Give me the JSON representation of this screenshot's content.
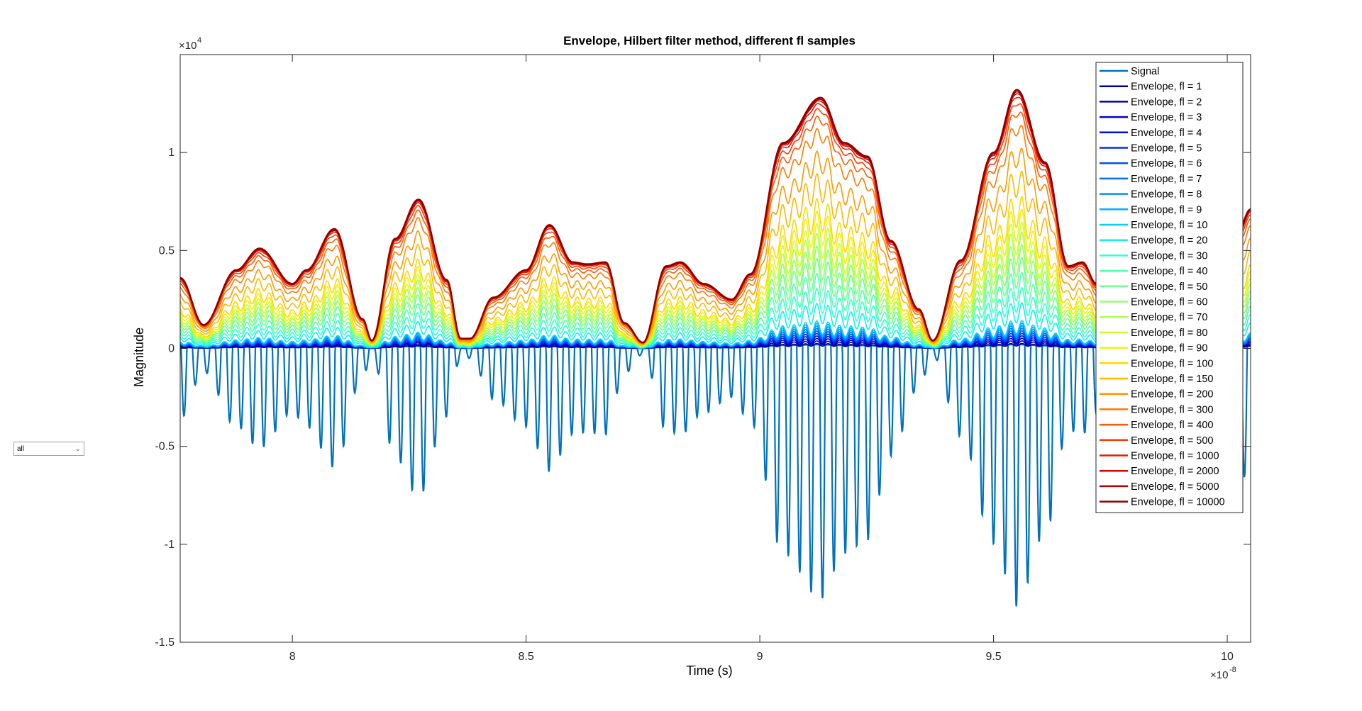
{
  "control": {
    "selected": "all",
    "chevron_icon": "chevron-down-icon"
  },
  "chart_data": {
    "type": "line",
    "title": "Envelope, Hilbert filter method, different fl samples",
    "xlabel": "Time (s)",
    "ylabel": "Magnitude",
    "x_exponent": "×10",
    "x_exponent_power": "-8",
    "y_exponent": "×10",
    "y_exponent_power": "4",
    "xlim": [
      7.76,
      10.05
    ],
    "ylim": [
      -1.5,
      1.5
    ],
    "xticks": [
      8,
      8.5,
      9,
      9.5,
      10
    ],
    "xtick_labels": [
      "8",
      "8.5",
      "9",
      "9.5",
      "10"
    ],
    "yticks": [
      1,
      0.5,
      0,
      -0.5,
      -1,
      -1.5
    ],
    "ytick_labels": [
      "1",
      "0.5",
      "0",
      "-0.5",
      "-1",
      "-1.5"
    ],
    "carrier_frequency_per_unit": 41,
    "envelope_peaks": {
      "x": [
        7.76,
        7.81,
        7.88,
        7.93,
        8.0,
        8.03,
        8.09,
        8.15,
        8.17,
        8.22,
        8.27,
        8.33,
        8.36,
        8.38,
        8.43,
        8.5,
        8.55,
        8.6,
        8.63,
        8.67,
        8.71,
        8.75,
        8.8,
        8.83,
        8.88,
        8.94,
        8.98,
        9.05,
        9.13,
        9.18,
        9.23,
        9.28,
        9.34,
        9.37,
        9.43,
        9.5,
        9.55,
        9.61,
        9.66,
        9.69,
        9.72,
        9.74,
        9.78,
        9.85,
        9.93,
        10.0,
        10.02,
        10.05
      ],
      "y": [
        0.36,
        0.12,
        0.4,
        0.51,
        0.33,
        0.4,
        0.61,
        0.15,
        0.04,
        0.56,
        0.76,
        0.35,
        0.05,
        0.05,
        0.26,
        0.4,
        0.63,
        0.44,
        0.43,
        0.44,
        0.13,
        0.03,
        0.42,
        0.44,
        0.33,
        0.25,
        0.38,
        1.05,
        1.28,
        1.05,
        0.98,
        0.55,
        0.2,
        0.04,
        0.45,
        1.0,
        1.32,
        0.95,
        0.42,
        0.44,
        0.33,
        0.1,
        0.12,
        0.12,
        0.12,
        0.05,
        0.58,
        0.71
      ]
    },
    "series": [
      {
        "name": "Signal",
        "color": "#0072BD",
        "frac": null
      },
      {
        "name": "Envelope, fl = 1",
        "color": "#00008F",
        "frac": 0.02
      },
      {
        "name": "Envelope, fl = 2",
        "color": "#0000A8",
        "frac": 0.03
      },
      {
        "name": "Envelope, fl = 3",
        "color": "#0000C8",
        "frac": 0.04
      },
      {
        "name": "Envelope, fl = 4",
        "color": "#0010E0",
        "frac": 0.05
      },
      {
        "name": "Envelope, fl = 5",
        "color": "#0030EE",
        "frac": 0.06
      },
      {
        "name": "Envelope, fl = 6",
        "color": "#0050F5",
        "frac": 0.07
      },
      {
        "name": "Envelope, fl = 7",
        "color": "#0070FA",
        "frac": 0.08
      },
      {
        "name": "Envelope, fl = 8",
        "color": "#0090FF",
        "frac": 0.09
      },
      {
        "name": "Envelope, fl = 9",
        "color": "#00B0FF",
        "frac": 0.1
      },
      {
        "name": "Envelope, fl = 10",
        "color": "#00D0FF",
        "frac": 0.11
      },
      {
        "name": "Envelope, fl = 20",
        "color": "#10F0F0",
        "frac": 0.18
      },
      {
        "name": "Envelope, fl = 30",
        "color": "#30FFD0",
        "frac": 0.24
      },
      {
        "name": "Envelope, fl = 40",
        "color": "#50FFB0",
        "frac": 0.3
      },
      {
        "name": "Envelope, fl = 50",
        "color": "#70FF90",
        "frac": 0.36
      },
      {
        "name": "Envelope, fl = 60",
        "color": "#90FF70",
        "frac": 0.41
      },
      {
        "name": "Envelope, fl = 70",
        "color": "#B0FF50",
        "frac": 0.46
      },
      {
        "name": "Envelope, fl = 80",
        "color": "#D0FF30",
        "frac": 0.5
      },
      {
        "name": "Envelope, fl = 90",
        "color": "#F0F010",
        "frac": 0.55
      },
      {
        "name": "Envelope, fl = 100",
        "color": "#FFD800",
        "frac": 0.6
      },
      {
        "name": "Envelope, fl = 150",
        "color": "#FFB800",
        "frac": 0.7
      },
      {
        "name": "Envelope, fl = 200",
        "color": "#FF9800",
        "frac": 0.79
      },
      {
        "name": "Envelope, fl = 300",
        "color": "#FF7A00",
        "frac": 0.88
      },
      {
        "name": "Envelope, fl = 400",
        "color": "#FF5A00",
        "frac": 0.93
      },
      {
        "name": "Envelope, fl = 500",
        "color": "#FF3A00",
        "frac": 0.96
      },
      {
        "name": "Envelope, fl = 1000",
        "color": "#F01800",
        "frac": 0.98
      },
      {
        "name": "Envelope, fl = 2000",
        "color": "#D80000",
        "frac": 0.99
      },
      {
        "name": "Envelope, fl = 5000",
        "color": "#B00000",
        "frac": 0.995
      },
      {
        "name": "Envelope, fl = 10000",
        "color": "#8F0000",
        "frac": 1.0
      }
    ],
    "legend_position": "top-right",
    "grid": false
  }
}
